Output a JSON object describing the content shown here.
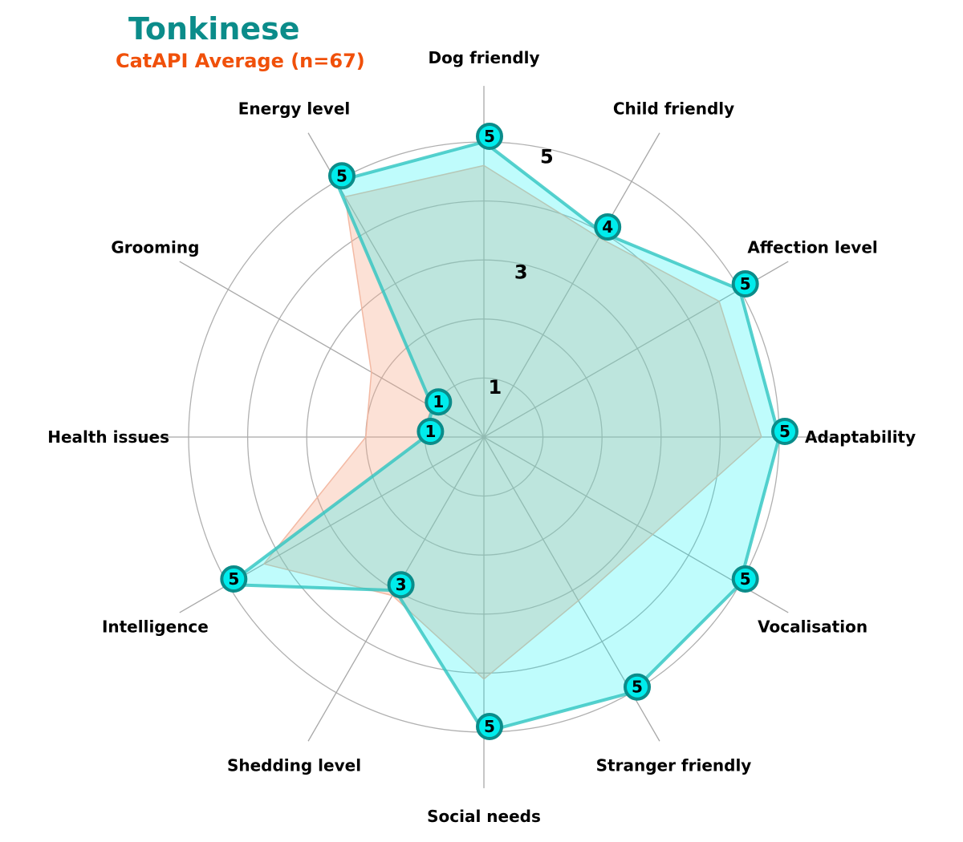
{
  "chart_data": {
    "type": "radar",
    "title": "Tonkinese",
    "subtitle": "CatAPI Average (n=67)",
    "axes": [
      "Adaptability",
      "Affection level",
      "Child friendly",
      "Dog friendly",
      "Energy level",
      "Grooming",
      "Health issues",
      "Intelligence",
      "Shedding level",
      "Social needs",
      "Stranger friendly",
      "Vocalisation"
    ],
    "rmax": 5,
    "radial_ticks": [
      1,
      2,
      3,
      4,
      5
    ],
    "radial_tick_labels": [
      "1",
      "",
      "3",
      "",
      "5"
    ],
    "series": [
      {
        "name": "Tonkinese",
        "values": [
          5,
          5,
          4,
          5,
          5,
          1,
          1,
          5,
          3,
          5,
          5,
          5
        ],
        "fill": "#00f5f5",
        "fill_opacity": 0.25,
        "line": "#2ec4c0",
        "marker_fill": "#00ecec",
        "marker_edge": "#0b8c8a"
      },
      {
        "name": "CatAPI Average (n=67)",
        "values": [
          4.7,
          4.6,
          3.9,
          4.6,
          4.7,
          2.2,
          2.0,
          4.3,
          3.1,
          4.1,
          3.2,
          3.3
        ],
        "fill": "#f7a88a",
        "fill_opacity": 0.35,
        "line": "#f2b49c"
      }
    ],
    "grid": true
  }
}
